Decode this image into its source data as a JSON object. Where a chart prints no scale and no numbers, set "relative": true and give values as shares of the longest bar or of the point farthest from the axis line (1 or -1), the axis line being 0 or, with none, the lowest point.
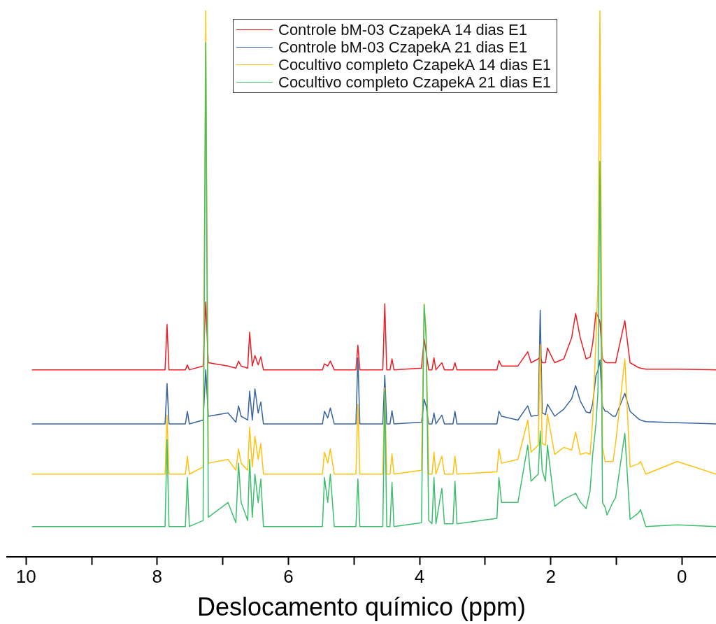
{
  "chart_data": {
    "type": "line",
    "xlabel": "Deslocamento químico (ppm)",
    "relative": true,
    "legend": "top",
    "marker": "none",
    "line_style": "solid",
    "xlim": [
      10.29,
      -0.52
    ],
    "xticks": [
      10,
      {
        "value": 9,
        "label": null
      },
      8,
      {
        "value": 7,
        "label": null
      },
      6,
      {
        "value": 5,
        "label": null
      },
      4,
      {
        "value": 3,
        "label": null
      },
      2,
      {
        "value": 1,
        "label": null
      },
      0
    ],
    "x": [
      9.91,
      7.88,
      7.85,
      7.82,
      7.57,
      7.54,
      7.51,
      7.3,
      7.26,
      7.22,
      6.92,
      6.8,
      6.76,
      6.72,
      6.62,
      6.59,
      6.55,
      6.51,
      6.46,
      6.42,
      6.38,
      5.48,
      5.45,
      5.4,
      5.36,
      5.3,
      4.97,
      4.94,
      4.91,
      4.56,
      4.53,
      4.5,
      4.45,
      4.42,
      4.39,
      3.97,
      3.93,
      3.9,
      3.86,
      3.81,
      3.78,
      3.75,
      3.66,
      3.62,
      3.49,
      3.46,
      3.43,
      2.82,
      2.79,
      2.75,
      2.5,
      2.35,
      2.3,
      2.19,
      2.16,
      2.13,
      2.08,
      2.05,
      1.94,
      1.8,
      1.68,
      1.62,
      1.55,
      1.46,
      1.4,
      1.36,
      1.31,
      1.28,
      1.25,
      1.21,
      1.17,
      1.14,
      1.05,
      1.01,
      0.87,
      0.79,
      0.66,
      0.63,
      0.55,
      0.07,
      -0.52
    ],
    "series": [
      {
        "name": "Controle bM-03 CzapekA 14 dias E1",
        "color": "#ee1c25",
        "values": [
          0.342,
          0.342,
          0.425,
          0.342,
          0.342,
          0.351,
          0.342,
          0.349,
          0.466,
          0.355,
          0.349,
          0.345,
          0.358,
          0.349,
          0.345,
          0.411,
          0.349,
          0.368,
          0.351,
          0.366,
          0.342,
          0.342,
          0.353,
          0.349,
          0.358,
          0.342,
          0.342,
          0.387,
          0.342,
          0.342,
          0.463,
          0.342,
          0.342,
          0.362,
          0.342,
          0.345,
          0.399,
          0.375,
          0.342,
          0.342,
          0.364,
          0.342,
          0.355,
          0.342,
          0.342,
          0.355,
          0.342,
          0.342,
          0.359,
          0.349,
          0.349,
          0.375,
          0.355,
          0.362,
          0.366,
          0.355,
          0.355,
          0.382,
          0.355,
          0.362,
          0.401,
          0.445,
          0.401,
          0.362,
          0.365,
          0.39,
          0.447,
          0.44,
          0.43,
          0.362,
          0.356,
          0.355,
          0.355,
          0.355,
          0.432,
          0.355,
          0.346,
          0.345,
          0.343,
          0.343,
          0.342
        ]
      },
      {
        "name": "Controle bM-03 CzapekA 21 dias E1",
        "color": "#3a64a0",
        "values": [
          0.243,
          0.243,
          0.317,
          0.243,
          0.243,
          0.266,
          0.243,
          0.25,
          0.342,
          0.257,
          0.263,
          0.246,
          0.276,
          0.257,
          0.25,
          0.303,
          0.25,
          0.307,
          0.263,
          0.283,
          0.243,
          0.243,
          0.266,
          0.254,
          0.272,
          0.243,
          0.243,
          0.364,
          0.243,
          0.243,
          0.332,
          0.243,
          0.243,
          0.267,
          0.243,
          0.246,
          0.288,
          0.276,
          0.243,
          0.243,
          0.263,
          0.243,
          0.259,
          0.243,
          0.243,
          0.266,
          0.243,
          0.243,
          0.266,
          0.257,
          0.25,
          0.276,
          0.257,
          0.259,
          0.451,
          0.263,
          0.26,
          0.279,
          0.257,
          0.27,
          0.289,
          0.313,
          0.285,
          0.265,
          0.263,
          0.28,
          0.332,
          0.34,
          0.36,
          0.275,
          0.266,
          0.266,
          0.257,
          0.257,
          0.299,
          0.266,
          0.252,
          0.25,
          0.247,
          0.245,
          0.243
        ]
      },
      {
        "name": "Cocultivo completo CzapekA 14 dias E1",
        "color": "#ffc20e",
        "values": [
          0.151,
          0.151,
          0.259,
          0.151,
          0.151,
          0.184,
          0.151,
          0.164,
          1,
          0.171,
          0.178,
          0.158,
          0.197,
          0.171,
          0.158,
          0.237,
          0.164,
          0.22,
          0.178,
          0.207,
          0.151,
          0.151,
          0.191,
          0.171,
          0.197,
          0.151,
          0.151,
          0.279,
          0.151,
          0.151,
          0.309,
          0.151,
          0.151,
          0.188,
          0.151,
          0.158,
          0.463,
          0.414,
          0.151,
          0.151,
          0.191,
          0.151,
          0.184,
          0.151,
          0.151,
          0.184,
          0.151,
          0.155,
          0.197,
          0.171,
          0.178,
          0.25,
          0.191,
          0.204,
          0.388,
          0.207,
          0.204,
          0.261,
          0.187,
          0.2,
          0.195,
          0.228,
          0.187,
          0.19,
          0.187,
          0.25,
          0.397,
          0.5,
          1,
          0.2,
          0.174,
          0.174,
          0.174,
          0.208,
          0.362,
          0.164,
          0.17,
          0.174,
          0.151,
          0.174,
          0.151
        ]
      },
      {
        "name": "Cocultivo completo CzapekA 21 dias E1",
        "color": "#3dbf6e",
        "values": [
          0.055,
          0.055,
          0.214,
          0.055,
          0.055,
          0.145,
          0.055,
          0.066,
          0.941,
          0.072,
          0.099,
          0.062,
          0.171,
          0.099,
          0.066,
          0.178,
          0.072,
          0.151,
          0.099,
          0.142,
          0.055,
          0.055,
          0.145,
          0.099,
          0.151,
          0.055,
          0.055,
          0.142,
          0.055,
          0.055,
          0.303,
          0.055,
          0.055,
          0.136,
          0.055,
          0.062,
          0.461,
          0.401,
          0.066,
          0.06,
          0.145,
          0.06,
          0.125,
          0.06,
          0.06,
          0.138,
          0.06,
          0.07,
          0.145,
          0.099,
          0.099,
          0.204,
          0.138,
          0.151,
          0.23,
          0.158,
          0.138,
          0.204,
          0.092,
          0.105,
          0.112,
          0.116,
          0.1,
          0.088,
          0.12,
          0.187,
          0.243,
          0.3,
          0.724,
          0.099,
          0.09,
          0.076,
          0.1,
          0.108,
          0.226,
          0.068,
          0.08,
          0.086,
          0.055,
          0.058,
          0.055
        ]
      }
    ]
  }
}
